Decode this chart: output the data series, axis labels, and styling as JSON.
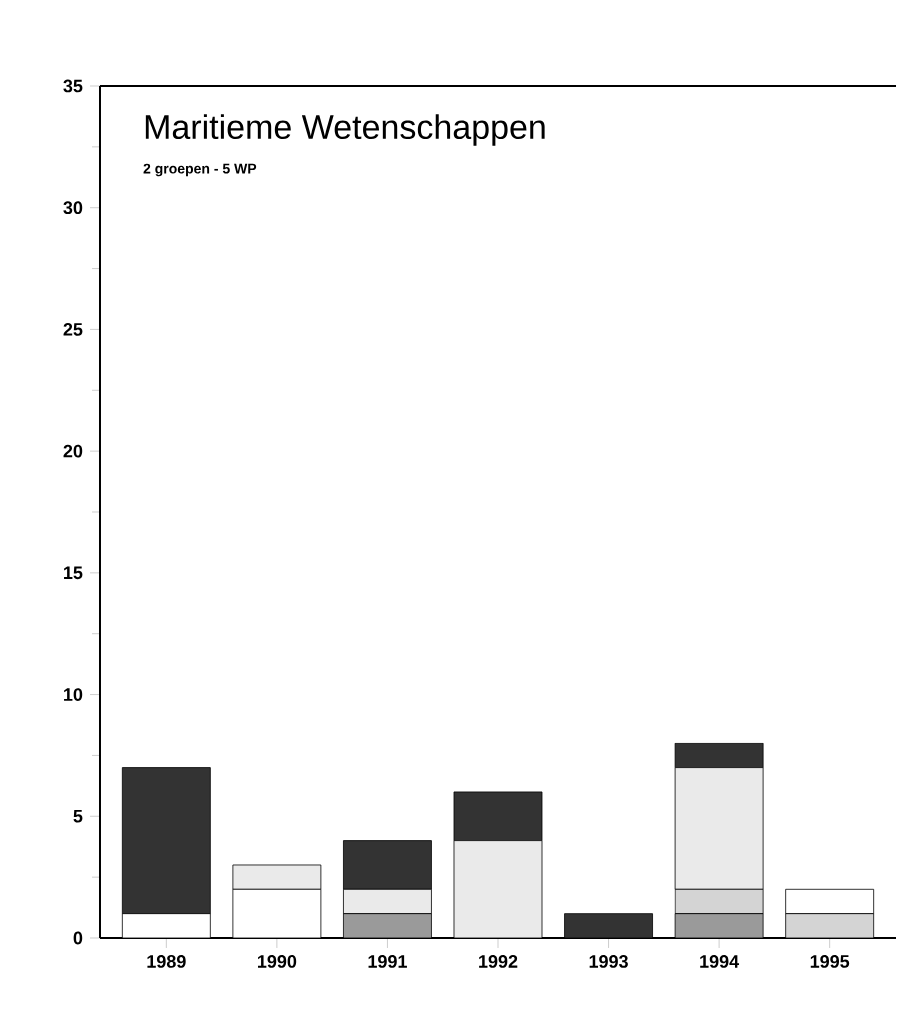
{
  "chart_data": {
    "type": "bar",
    "stacked": true,
    "title": "Maritieme Wetenschappen",
    "subtitle": "2 groepen - 5 WP",
    "categories": [
      "1989",
      "1990",
      "1991",
      "1992",
      "1993",
      "1994",
      "1995"
    ],
    "series": [
      {
        "color": "#9a9a9a",
        "values": [
          0,
          0,
          1,
          0,
          0,
          1,
          0
        ]
      },
      {
        "color": "#d4d4d4",
        "values": [
          0,
          0,
          0,
          0,
          0,
          1,
          1
        ]
      },
      {
        "color": "#ffffff",
        "values": [
          1,
          2,
          0,
          0,
          0,
          0,
          1
        ]
      },
      {
        "color": "#eaeaea",
        "values": [
          0,
          1,
          1,
          4,
          0,
          5,
          0
        ]
      },
      {
        "color": "#333333",
        "values": [
          6,
          0,
          2,
          2,
          1,
          1,
          0
        ]
      }
    ],
    "ylim": [
      0,
      35
    ],
    "yticks": [
      0,
      5,
      10,
      15,
      20,
      25,
      30,
      35
    ],
    "grid": false
  }
}
